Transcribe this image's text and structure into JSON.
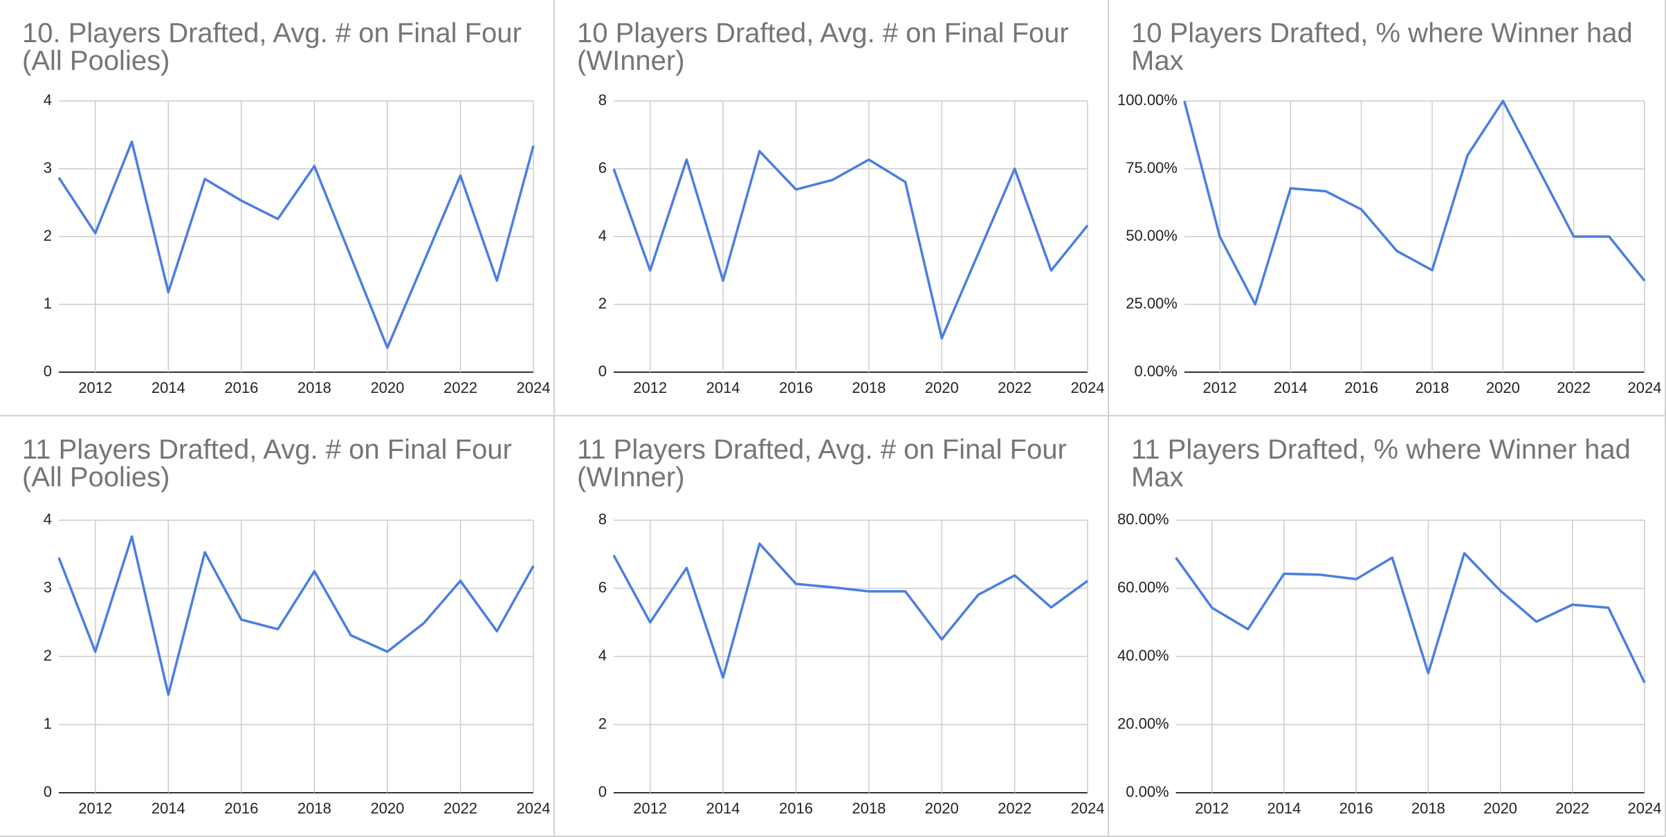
{
  "chart_data": [
    {
      "type": "line",
      "title": "10. Players Drafted, Avg. # on Final Four (All Poolies)",
      "x": [
        2011,
        2012,
        2013,
        2014,
        2015,
        2016,
        2017,
        2018,
        2019,
        2020,
        2021,
        2022,
        2023,
        2024
      ],
      "values": [
        2.87,
        2.05,
        3.4,
        1.18,
        2.85,
        2.53,
        2.26,
        3.04,
        1.7,
        0.36,
        1.63,
        2.9,
        1.35,
        3.34
      ],
      "color": "#4a7ee0",
      "xlim": [
        2011,
        2024
      ],
      "xticks": [
        2012,
        2014,
        2016,
        2018,
        2020,
        2022,
        2024
      ],
      "ylim": [
        0,
        4
      ],
      "yticks": [
        0,
        1,
        2,
        3,
        4
      ],
      "grid": true
    },
    {
      "type": "line",
      "title": "10 Players Drafted, Avg. # on Final Four (WInner)",
      "x": [
        2011,
        2012,
        2013,
        2014,
        2015,
        2016,
        2017,
        2018,
        2019,
        2020,
        2021,
        2022,
        2023,
        2024
      ],
      "values": [
        6,
        3,
        6.27,
        2.7,
        6.52,
        5.39,
        5.67,
        6.27,
        5.61,
        1,
        3.5,
        6,
        3,
        4.33
      ],
      "color": "#4a7ee0",
      "xlim": [
        2011,
        2024
      ],
      "xticks": [
        2012,
        2014,
        2016,
        2018,
        2020,
        2022,
        2024
      ],
      "ylim": [
        0,
        8
      ],
      "yticks": [
        0,
        2,
        4,
        6,
        8
      ],
      "grid": true
    },
    {
      "type": "line",
      "title": "10 Players Drafted, % where Winner had Max",
      "x": [
        2011,
        2012,
        2013,
        2014,
        2015,
        2016,
        2017,
        2018,
        2019,
        2020,
        2021,
        2022,
        2023,
        2024
      ],
      "values": [
        100,
        50,
        25,
        67.8,
        66.7,
        60,
        44.7,
        37.6,
        80,
        100,
        75,
        50,
        50,
        33.7
      ],
      "color": "#4a7ee0",
      "xlim": [
        2011,
        2024
      ],
      "xticks": [
        2012,
        2014,
        2016,
        2018,
        2020,
        2022,
        2024
      ],
      "ylim": [
        0,
        100
      ],
      "yticks": [
        {
          "value": 0,
          "label": "0.00%"
        },
        {
          "value": 25,
          "label": "25.00%"
        },
        {
          "value": 50,
          "label": "50.00%"
        },
        {
          "value": 75,
          "label": "75.00%"
        },
        {
          "value": 100,
          "label": "100.00%"
        }
      ],
      "grid": true
    },
    {
      "type": "line",
      "title": "11 Players Drafted, Avg. # on Final Four (All Poolies)",
      "x": [
        2011,
        2012,
        2013,
        2014,
        2015,
        2016,
        2017,
        2018,
        2019,
        2020,
        2021,
        2022,
        2023,
        2024
      ],
      "values": [
        3.45,
        2.07,
        3.76,
        1.44,
        3.53,
        2.54,
        2.4,
        3.25,
        2.31,
        2.07,
        2.49,
        3.11,
        2.37,
        3.33
      ],
      "color": "#4a7ee0",
      "xlim": [
        2011,
        2024
      ],
      "xticks": [
        2012,
        2014,
        2016,
        2018,
        2020,
        2022,
        2024
      ],
      "ylim": [
        0,
        4
      ],
      "yticks": [
        0,
        1,
        2,
        3,
        4
      ],
      "grid": true
    },
    {
      "type": "line",
      "title": "11 Players Drafted, Avg. # on Final Four (WInner)",
      "x": [
        2011,
        2012,
        2013,
        2014,
        2015,
        2016,
        2017,
        2018,
        2019,
        2020,
        2021,
        2022,
        2023,
        2024
      ],
      "values": [
        6.97,
        5,
        6.6,
        3.38,
        7.31,
        6.13,
        6.03,
        5.91,
        5.91,
        4.5,
        5.81,
        6.38,
        5.44,
        6.22
      ],
      "color": "#4a7ee0",
      "xlim": [
        2011,
        2024
      ],
      "xticks": [
        2012,
        2014,
        2016,
        2018,
        2020,
        2022,
        2024
      ],
      "ylim": [
        0,
        8
      ],
      "yticks": [
        0,
        2,
        4,
        6,
        8
      ],
      "grid": true
    },
    {
      "type": "line",
      "title": "11 Players Drafted, % where Winner had Max",
      "x": [
        2011,
        2012,
        2013,
        2014,
        2015,
        2016,
        2017,
        2018,
        2019,
        2020,
        2021,
        2022,
        2023,
        2024
      ],
      "values": [
        69,
        54.3,
        48,
        64.3,
        64,
        62.7,
        69,
        35.1,
        70.3,
        59.3,
        50.2,
        55.2,
        54.3,
        32.3
      ],
      "color": "#4a7ee0",
      "xlim": [
        2011,
        2024
      ],
      "xticks": [
        2012,
        2014,
        2016,
        2018,
        2020,
        2022,
        2024
      ],
      "ylim": [
        0,
        80
      ],
      "yticks": [
        {
          "value": 0,
          "label": "0.00%"
        },
        {
          "value": 20,
          "label": "20.00%"
        },
        {
          "value": 40,
          "label": "40.00%"
        },
        {
          "value": 60,
          "label": "60.00%"
        },
        {
          "value": 80,
          "label": "80.00%"
        }
      ],
      "grid": true
    }
  ]
}
